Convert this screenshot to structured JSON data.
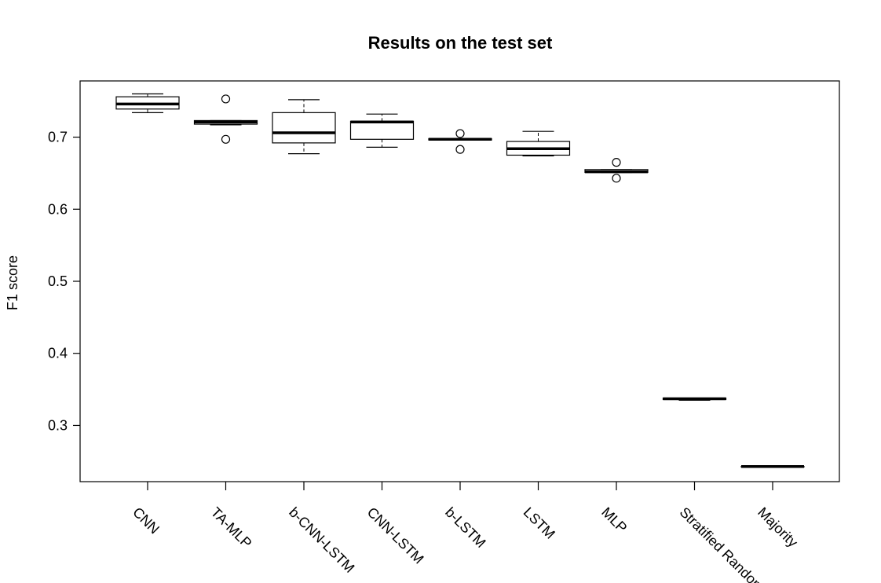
{
  "chart_data": {
    "type": "boxplot",
    "title": "Results on the test set",
    "xlabel": "",
    "ylabel": "F1 score",
    "ylim": [
      0.222,
      0.778
    ],
    "yticks": [
      0.3,
      0.4,
      0.5,
      0.6,
      0.7
    ],
    "ytick_labels": [
      "0.3",
      "0.4",
      "0.5",
      "0.6",
      "0.7"
    ],
    "grid": false,
    "legend": "none",
    "categories": [
      "CNN",
      "TA-MLP",
      "b-CNN-LSTM",
      "CNN-LSTM",
      "b-LSTM",
      "LSTM",
      "MLP",
      "Stratified Random",
      "Majority"
    ],
    "boxes": [
      {
        "category": "CNN",
        "whisker_low": 0.734,
        "q1": 0.739,
        "median": 0.746,
        "q3": 0.756,
        "whisker_high": 0.76,
        "outliers": []
      },
      {
        "category": "TA-MLP",
        "whisker_low": 0.717,
        "q1": 0.718,
        "median": 0.721,
        "q3": 0.723,
        "whisker_high": 0.723,
        "outliers": [
          0.697,
          0.753
        ]
      },
      {
        "category": "b-CNN-LSTM",
        "whisker_low": 0.677,
        "q1": 0.692,
        "median": 0.706,
        "q3": 0.734,
        "whisker_high": 0.752,
        "outliers": []
      },
      {
        "category": "CNN-LSTM",
        "whisker_low": 0.686,
        "q1": 0.697,
        "median": 0.721,
        "q3": 0.722,
        "whisker_high": 0.732,
        "outliers": []
      },
      {
        "category": "b-LSTM",
        "whisker_low": 0.696,
        "q1": 0.696,
        "median": 0.697,
        "q3": 0.698,
        "whisker_high": 0.698,
        "outliers": [
          0.683,
          0.705
        ]
      },
      {
        "category": "LSTM",
        "whisker_low": 0.674,
        "q1": 0.675,
        "median": 0.684,
        "q3": 0.694,
        "whisker_high": 0.708,
        "outliers": []
      },
      {
        "category": "MLP",
        "whisker_low": 0.651,
        "q1": 0.651,
        "median": 0.652,
        "q3": 0.655,
        "whisker_high": 0.655,
        "outliers": [
          0.643,
          0.665
        ]
      },
      {
        "category": "Stratified Random",
        "whisker_low": 0.335,
        "q1": 0.336,
        "median": 0.337,
        "q3": 0.338,
        "whisker_high": 0.338,
        "outliers": []
      },
      {
        "category": "Majority",
        "whisker_low": 0.243,
        "q1": 0.243,
        "median": 0.243,
        "q3": 0.243,
        "whisker_high": 0.243,
        "outliers": []
      }
    ]
  }
}
